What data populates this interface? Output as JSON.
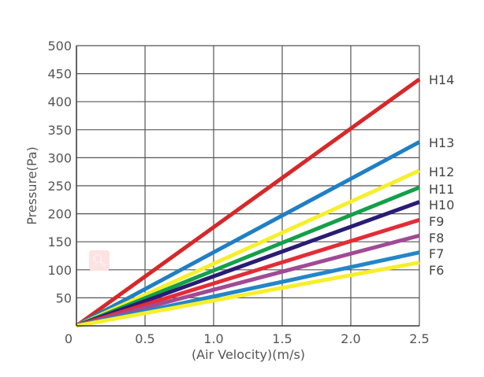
{
  "chart_data": {
    "type": "line",
    "title": "",
    "xlabel": "(Air Velocity)(m/s)",
    "ylabel": "Pressure(Pa)",
    "xlim": [
      0,
      2.5
    ],
    "ylim": [
      0,
      500
    ],
    "x_ticks": [
      "0",
      "0.5",
      "1.0",
      "1.5",
      "2.0",
      "2.5"
    ],
    "y_ticks": [
      "50",
      "100",
      "150",
      "200",
      "250",
      "300",
      "350",
      "400",
      "450",
      "500"
    ],
    "x_tick_values": [
      0,
      0.5,
      1.0,
      1.5,
      2.0,
      2.5
    ],
    "y_tick_values": [
      50,
      100,
      150,
      200,
      250,
      300,
      350,
      400,
      450,
      500
    ],
    "grid": true,
    "legend": "inline labels at right end of lines",
    "series": [
      {
        "name": "H14",
        "color": "#d6282a",
        "x": [
          0,
          2.5
        ],
        "values": [
          0,
          440
        ]
      },
      {
        "name": "H13",
        "color": "#1f7fc4",
        "x": [
          0,
          2.5
        ],
        "values": [
          0,
          328
        ]
      },
      {
        "name": "H12",
        "color": "#f6ef2c",
        "x": [
          0,
          2.5
        ],
        "values": [
          0,
          277
        ]
      },
      {
        "name": "H11",
        "color": "#13a04a",
        "x": [
          0,
          2.5
        ],
        "values": [
          0,
          247
        ]
      },
      {
        "name": "H10",
        "color": "#2a1c75",
        "x": [
          0,
          2.5
        ],
        "values": [
          0,
          221
        ]
      },
      {
        "name": "F9",
        "color": "#e22d37",
        "x": [
          0,
          2.5
        ],
        "values": [
          0,
          189
        ]
      },
      {
        "name": "F8",
        "color": "#a04a95",
        "x": [
          0,
          2.5
        ],
        "values": [
          0,
          161
        ]
      },
      {
        "name": "F7",
        "color": "#2386c9",
        "x": [
          0,
          2.5
        ],
        "values": [
          0,
          131
        ]
      },
      {
        "name": "F6",
        "color": "#f6ef2c",
        "x": [
          0,
          2.5
        ],
        "values": [
          0,
          113
        ]
      }
    ]
  }
}
